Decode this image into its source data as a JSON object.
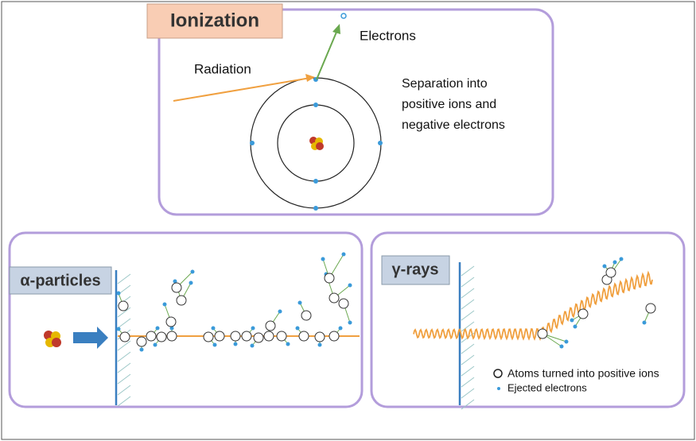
{
  "ionization": {
    "title": "Ionization",
    "electrons_label": "Electrons",
    "radiation_label": "Radiation",
    "description": [
      "Separation into",
      "positive ions and",
      "negative electrons"
    ]
  },
  "alpha": {
    "title": "α-particles"
  },
  "gamma": {
    "title": "γ-rays"
  },
  "legend": {
    "ions": "Atoms turned into positive ions",
    "electrons": "Ejected electrons"
  }
}
